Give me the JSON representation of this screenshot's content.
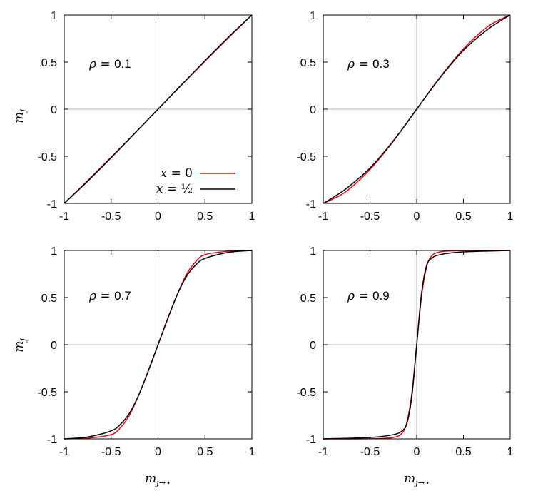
{
  "figure": {
    "ylabel_main": "m",
    "ylabel_sub": "j",
    "xlabel_main": "m",
    "xlabel_sub": "j→⋆"
  },
  "legend": {
    "entries": [
      {
        "var": "x",
        "eq": " = ",
        "val": "0",
        "color": "#e8000b"
      },
      {
        "var": "x",
        "eq": " = ",
        "val": "½",
        "color": "#000000"
      }
    ]
  },
  "chart_data": [
    {
      "type": "line",
      "annotation_var": "ρ",
      "annotation_eq": " = ",
      "annotation_val": "0.1",
      "xlim": [
        -1,
        1
      ],
      "ylim": [
        -1,
        1
      ],
      "xticks": [
        "-1",
        "-0.5",
        "0",
        "0.5",
        "1"
      ],
      "yticks": [
        "-1",
        "-0.5",
        "0",
        "0.5",
        "1"
      ],
      "series": [
        {
          "name": "x = 0",
          "color": "#e8000b",
          "x": [
            -1,
            -0.75,
            -0.5,
            -0.25,
            0,
            0.25,
            0.5,
            0.75,
            1
          ],
          "y": [
            -1,
            -0.758,
            -0.51,
            -0.258,
            0,
            0.258,
            0.51,
            0.758,
            1
          ]
        },
        {
          "name": "x = ½",
          "color": "#000000",
          "x": [
            -1,
            -0.75,
            -0.5,
            -0.25,
            0,
            0.25,
            0.5,
            0.75,
            1
          ],
          "y": [
            -1,
            -0.765,
            -0.515,
            -0.258,
            0,
            0.258,
            0.515,
            0.765,
            1
          ]
        }
      ]
    },
    {
      "type": "line",
      "annotation_var": "ρ",
      "annotation_eq": " = ",
      "annotation_val": "0.3",
      "xlim": [
        -1,
        1
      ],
      "ylim": [
        -1,
        1
      ],
      "xticks": [
        "-1",
        "-0.5",
        "0",
        "0.5",
        "1"
      ],
      "yticks": [
        "-1",
        "-0.5",
        "0",
        "0.5",
        "1"
      ],
      "series": [
        {
          "name": "x = 0",
          "color": "#e8000b",
          "x": [
            -1,
            -0.9,
            -0.75,
            -0.5,
            -0.25,
            0,
            0.25,
            0.5,
            0.75,
            0.9,
            1
          ],
          "y": [
            -1,
            -0.955,
            -0.87,
            -0.64,
            -0.34,
            0,
            0.34,
            0.64,
            0.87,
            0.955,
            1
          ]
        },
        {
          "name": "x = ½",
          "color": "#000000",
          "x": [
            -1,
            -0.9,
            -0.75,
            -0.5,
            -0.25,
            0,
            0.25,
            0.5,
            0.75,
            0.9,
            1
          ],
          "y": [
            -1,
            -0.94,
            -0.84,
            -0.625,
            -0.335,
            0,
            0.335,
            0.625,
            0.84,
            0.94,
            1
          ]
        }
      ]
    },
    {
      "type": "line",
      "annotation_var": "ρ",
      "annotation_eq": " = ",
      "annotation_val": "0.7",
      "xlim": [
        -1,
        1
      ],
      "ylim": [
        -1,
        1
      ],
      "xticks": [
        "-1",
        "-0.5",
        "0",
        "0.5",
        "1"
      ],
      "yticks": [
        "-1",
        "-0.5",
        "0",
        "0.5",
        "1"
      ],
      "series": [
        {
          "name": "x = 0",
          "color": "#e8000b",
          "x": [
            -1,
            -0.75,
            -0.5,
            -0.4,
            -0.3,
            -0.2,
            -0.1,
            0,
            0.1,
            0.2,
            0.3,
            0.4,
            0.5,
            0.75,
            1
          ],
          "y": [
            -1,
            -0.992,
            -0.955,
            -0.88,
            -0.74,
            -0.52,
            -0.265,
            0,
            0.265,
            0.52,
            0.74,
            0.88,
            0.955,
            0.992,
            1
          ]
        },
        {
          "name": "x = ½",
          "color": "#000000",
          "x": [
            -1,
            -0.75,
            -0.5,
            -0.4,
            -0.3,
            -0.2,
            -0.1,
            0,
            0.1,
            0.2,
            0.3,
            0.4,
            0.5,
            0.75,
            1
          ],
          "y": [
            -1,
            -0.98,
            -0.915,
            -0.845,
            -0.72,
            -0.52,
            -0.27,
            0,
            0.27,
            0.52,
            0.72,
            0.845,
            0.915,
            0.98,
            1
          ]
        }
      ]
    },
    {
      "type": "line",
      "annotation_var": "ρ",
      "annotation_eq": " = ",
      "annotation_val": "0.9",
      "xlim": [
        -1,
        1
      ],
      "ylim": [
        -1,
        1
      ],
      "xticks": [
        "-1",
        "-0.5",
        "0",
        "0.5",
        "1"
      ],
      "yticks": [
        "-1",
        "-0.5",
        "0",
        "0.5",
        "1"
      ],
      "series": [
        {
          "name": "x = 0",
          "color": "#e8000b",
          "x": [
            -1,
            -0.5,
            -0.25,
            -0.15,
            -0.1,
            -0.05,
            0,
            0.05,
            0.1,
            0.15,
            0.25,
            0.5,
            1
          ],
          "y": [
            -1,
            -0.998,
            -0.985,
            -0.93,
            -0.8,
            -0.5,
            0,
            0.5,
            0.8,
            0.93,
            0.985,
            0.998,
            1
          ]
        },
        {
          "name": "x = ½",
          "color": "#000000",
          "x": [
            -1,
            -0.5,
            -0.25,
            -0.15,
            -0.1,
            -0.05,
            0,
            0.05,
            0.1,
            0.15,
            0.25,
            0.5,
            1
          ],
          "y": [
            -1,
            -0.985,
            -0.955,
            -0.91,
            -0.82,
            -0.53,
            0,
            0.53,
            0.82,
            0.91,
            0.955,
            0.985,
            1
          ]
        }
      ]
    }
  ]
}
